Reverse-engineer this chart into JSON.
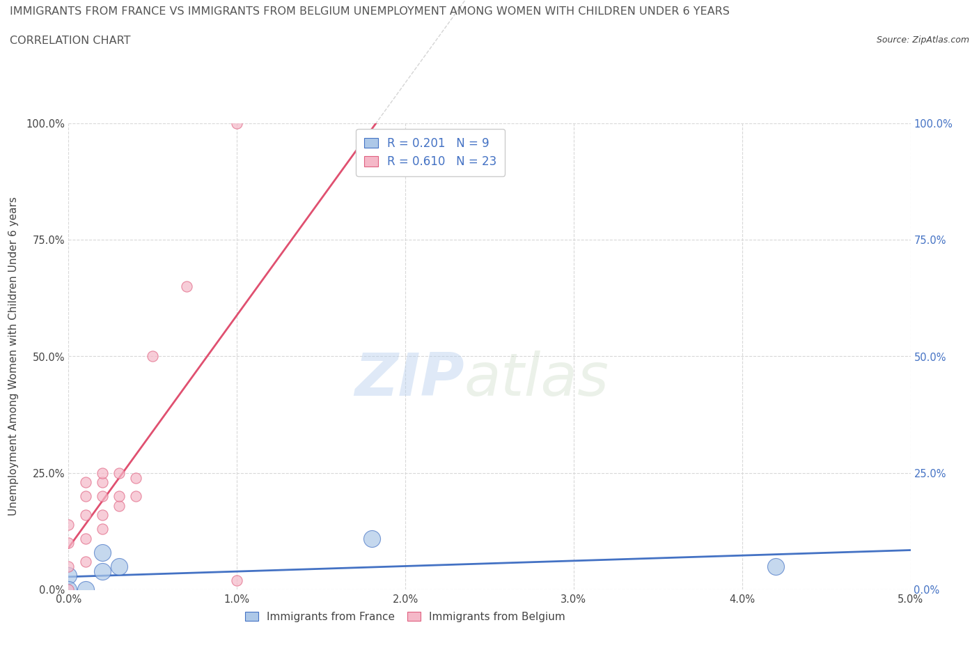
{
  "title_line1": "IMMIGRANTS FROM FRANCE VS IMMIGRANTS FROM BELGIUM UNEMPLOYMENT AMONG WOMEN WITH CHILDREN UNDER 6 YEARS",
  "title_line2": "CORRELATION CHART",
  "source": "Source: ZipAtlas.com",
  "ylabel": "Unemployment Among Women with Children Under 6 years",
  "xlim": [
    0.0,
    0.05
  ],
  "ylim": [
    0.0,
    1.0
  ],
  "watermark_zip": "ZIP",
  "watermark_atlas": "atlas",
  "france_color": "#adc8e8",
  "belgium_color": "#f5b8c8",
  "france_edge_color": "#4472c4",
  "belgium_edge_color": "#e06080",
  "france_line_color": "#4472c4",
  "belgium_line_color": "#e05070",
  "france_R": 0.201,
  "france_N": 9,
  "belgium_R": 0.61,
  "belgium_N": 23,
  "france_scatter_x": [
    0.0,
    0.0,
    0.001,
    0.002,
    0.002,
    0.003,
    0.003,
    0.018,
    0.042
  ],
  "france_scatter_y": [
    0.03,
    0.0,
    0.0,
    0.08,
    0.04,
    0.05,
    -0.03,
    0.11,
    0.05
  ],
  "belgium_scatter_x": [
    0.0,
    0.0,
    0.0,
    0.0,
    0.001,
    0.001,
    0.001,
    0.001,
    0.001,
    0.002,
    0.002,
    0.002,
    0.002,
    0.002,
    0.003,
    0.003,
    0.003,
    0.004,
    0.004,
    0.005,
    0.007,
    0.01,
    0.01
  ],
  "belgium_scatter_y": [
    0.0,
    0.05,
    0.1,
    0.14,
    0.06,
    0.11,
    0.16,
    0.2,
    0.23,
    0.13,
    0.16,
    0.2,
    0.23,
    0.25,
    0.18,
    0.2,
    0.25,
    0.2,
    0.24,
    0.5,
    0.65,
    1.0,
    0.02
  ],
  "background_color": "#ffffff",
  "grid_color": "#d8d8d8",
  "text_color": "#444444",
  "title_color": "#555555",
  "legend_text_color": "#4472c4"
}
